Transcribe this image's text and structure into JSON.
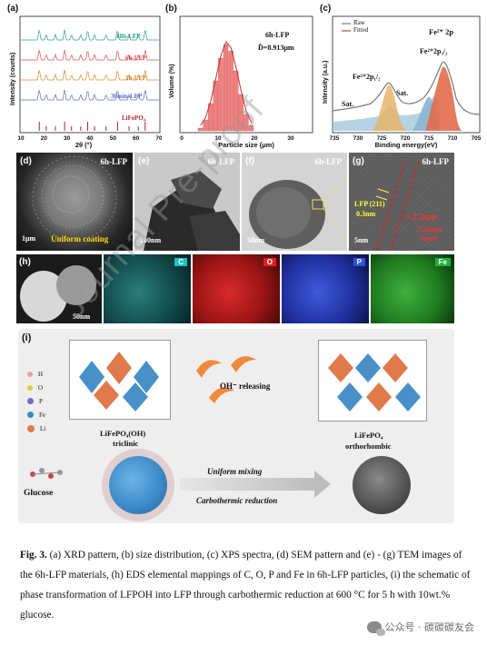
{
  "panels": {
    "a": {
      "label": "(a)",
      "ylabel": "Intensity (counts)",
      "xlabel": "2θ (°)",
      "xticks": [
        "10",
        "20",
        "30",
        "40",
        "50",
        "60",
        "70"
      ],
      "series": [
        "10h-LFP",
        "6h-LFP",
        "2h-LFP",
        "30min-LFP",
        "LiFePO₄"
      ],
      "colors": [
        "#2a9d8f",
        "#e04b4b",
        "#d9892b",
        "#5a6fc0",
        "#b0202a"
      ]
    },
    "b": {
      "label": "(b)",
      "title": "6h-LFP",
      "stat": "D̄=8.913μm",
      "ylabel": "Volume (%)",
      "xlabel": "Particle size (μm)",
      "xticks": [
        "0",
        "10",
        "20",
        "30"
      ]
    },
    "c": {
      "label": "(c)",
      "ylabel": "Intensity (a.u.)",
      "xlabel": "Binding energy(eV)",
      "xticks": [
        "735",
        "730",
        "725",
        "720",
        "715",
        "710",
        "705"
      ],
      "legend": [
        "Raw",
        "Fitted"
      ],
      "annot_fe2p": "Fe²⁺ 2p",
      "annot_p32": "Fe²⁺2p₃/₂",
      "annot_p12": "Fe²⁺2p₁/₂",
      "annot_sat1": "Sat.",
      "annot_sat2": "Sat."
    },
    "d": {
      "label": "(d)",
      "tag": "6h-LFP",
      "scale": "1μm",
      "note": "Uniform coating"
    },
    "e": {
      "label": "(e)",
      "tag": "6h-LFP",
      "scale": "200nm"
    },
    "f": {
      "label": "(f)",
      "tag": "6h-LFP",
      "scale": "50nm"
    },
    "g": {
      "label": "(g)",
      "tag": "6h-LFP",
      "scale": "5nm",
      "lattice": "LFP (211)",
      "dist": "0.3nm",
      "thickness": "≈ 2.5nm",
      "layer1": "Carbon",
      "layer2": "layer"
    },
    "h": {
      "label": "(h)",
      "scale": "50nm",
      "maps": [
        "C",
        "O",
        "P",
        "Fe"
      ]
    },
    "i": {
      "label": "(i)",
      "legend": [
        "H",
        "O",
        "P",
        "Fe",
        "Li"
      ],
      "left_name": "LiFePO₄(OH)",
      "left_sub": "triclinic",
      "right_name": "LiFePO₄",
      "right_sub": "orthorhombic",
      "release": "OH⁻ releasing",
      "glucose": "Glucose",
      "step1": "Uniform mixing",
      "step2": "Carbothermic reduction"
    }
  },
  "caption": {
    "fig": "Fig. 3.",
    "text": " (a) XRD pattern, (b) size distribution, (c) XPS spectra, (d) SEM pattern and (e) - (g) TEM images of the 6h-LFP materials, (h) EDS elemental mappings of C, O, P and Fe in 6h-LFP particles, (i) the schematic of phase transformation of LFPOH into LFP through carbothermic reduction at 600 °C for 5 h with 10wt.% glucose."
  },
  "watermark": "Journal Pre-proof",
  "wechat": "公众号 · 碳碳碳友会"
}
